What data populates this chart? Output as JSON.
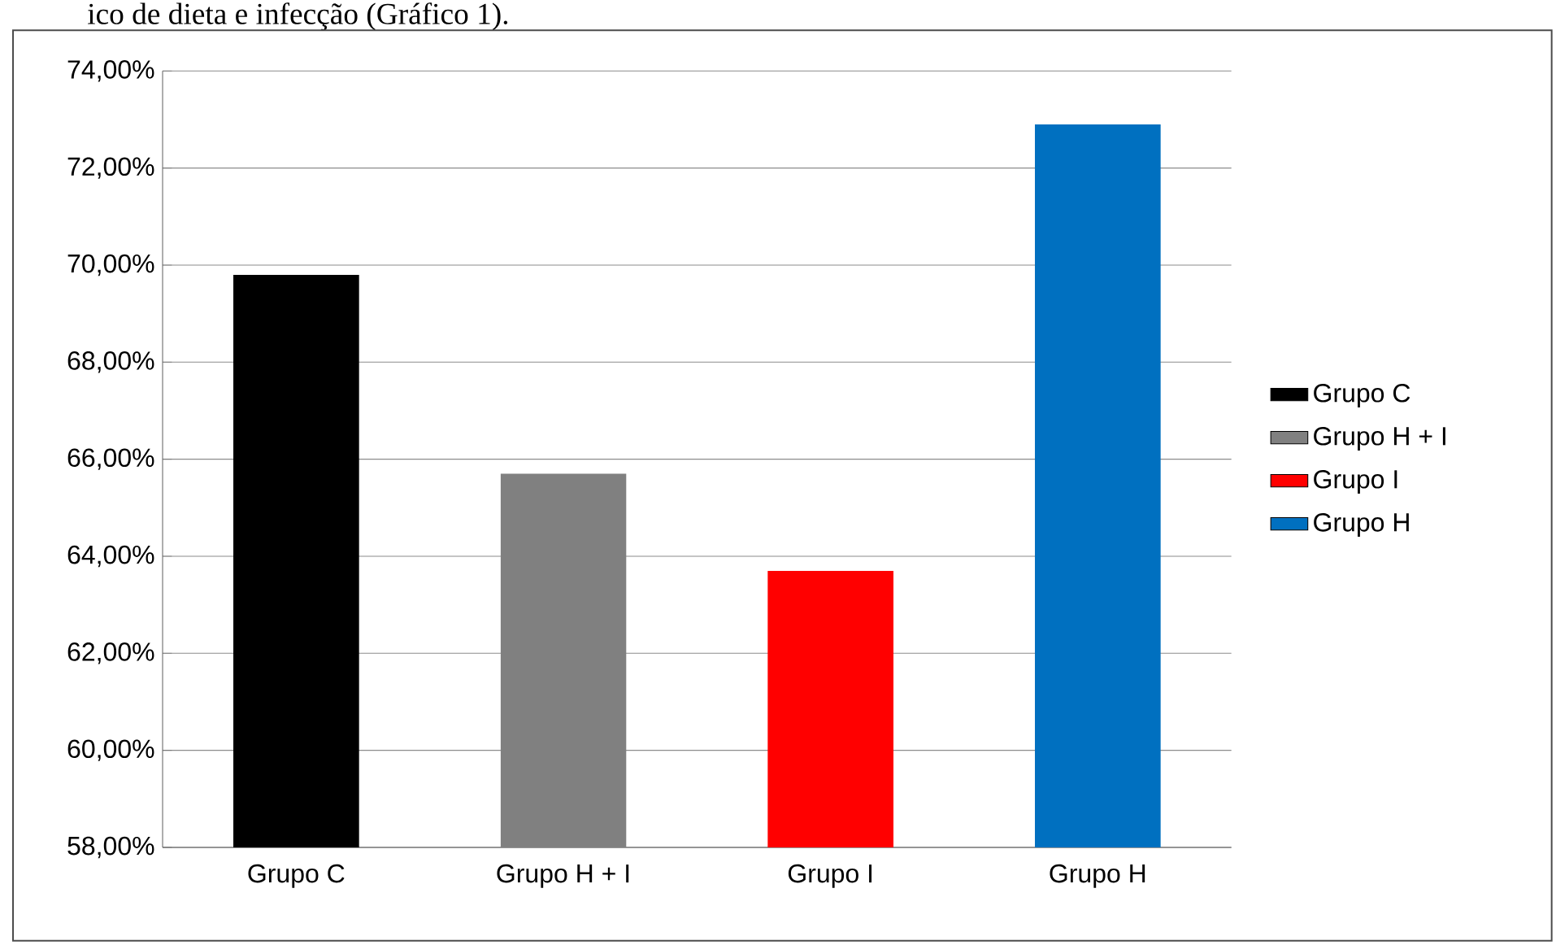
{
  "chart_data": {
    "type": "bar",
    "annotations": [
      "ico de dieta e infecção (Gráfico 1)."
    ],
    "categories": [
      "Grupo C",
      "Grupo H + I",
      "Grupo I",
      "Grupo H"
    ],
    "series": [
      {
        "name": "Grupo C",
        "color": "#000000",
        "values": [
          69.8,
          null,
          null,
          null
        ]
      },
      {
        "name": "Grupo H + I",
        "color": "#808080",
        "values": [
          null,
          65.7,
          null,
          null
        ]
      },
      {
        "name": "Grupo I",
        "color": "#ff0000",
        "values": [
          null,
          null,
          63.7,
          null
        ]
      },
      {
        "name": "Grupo H",
        "color": "#0070c0",
        "values": [
          null,
          null,
          null,
          72.9
        ]
      }
    ],
    "ylim": [
      58,
      74
    ],
    "yticks": [
      {
        "value": 58,
        "label": "58,00%"
      },
      {
        "value": 60,
        "label": "60,00%"
      },
      {
        "value": 62,
        "label": "62,00%"
      },
      {
        "value": 64,
        "label": "64,00%"
      },
      {
        "value": 66,
        "label": "66,00%"
      },
      {
        "value": 68,
        "label": "68,00%"
      },
      {
        "value": 70,
        "label": "70,00%"
      },
      {
        "value": 72,
        "label": "72,00%"
      },
      {
        "value": 74,
        "label": "74,00%"
      }
    ],
    "grid": "y",
    "legend": "right"
  }
}
